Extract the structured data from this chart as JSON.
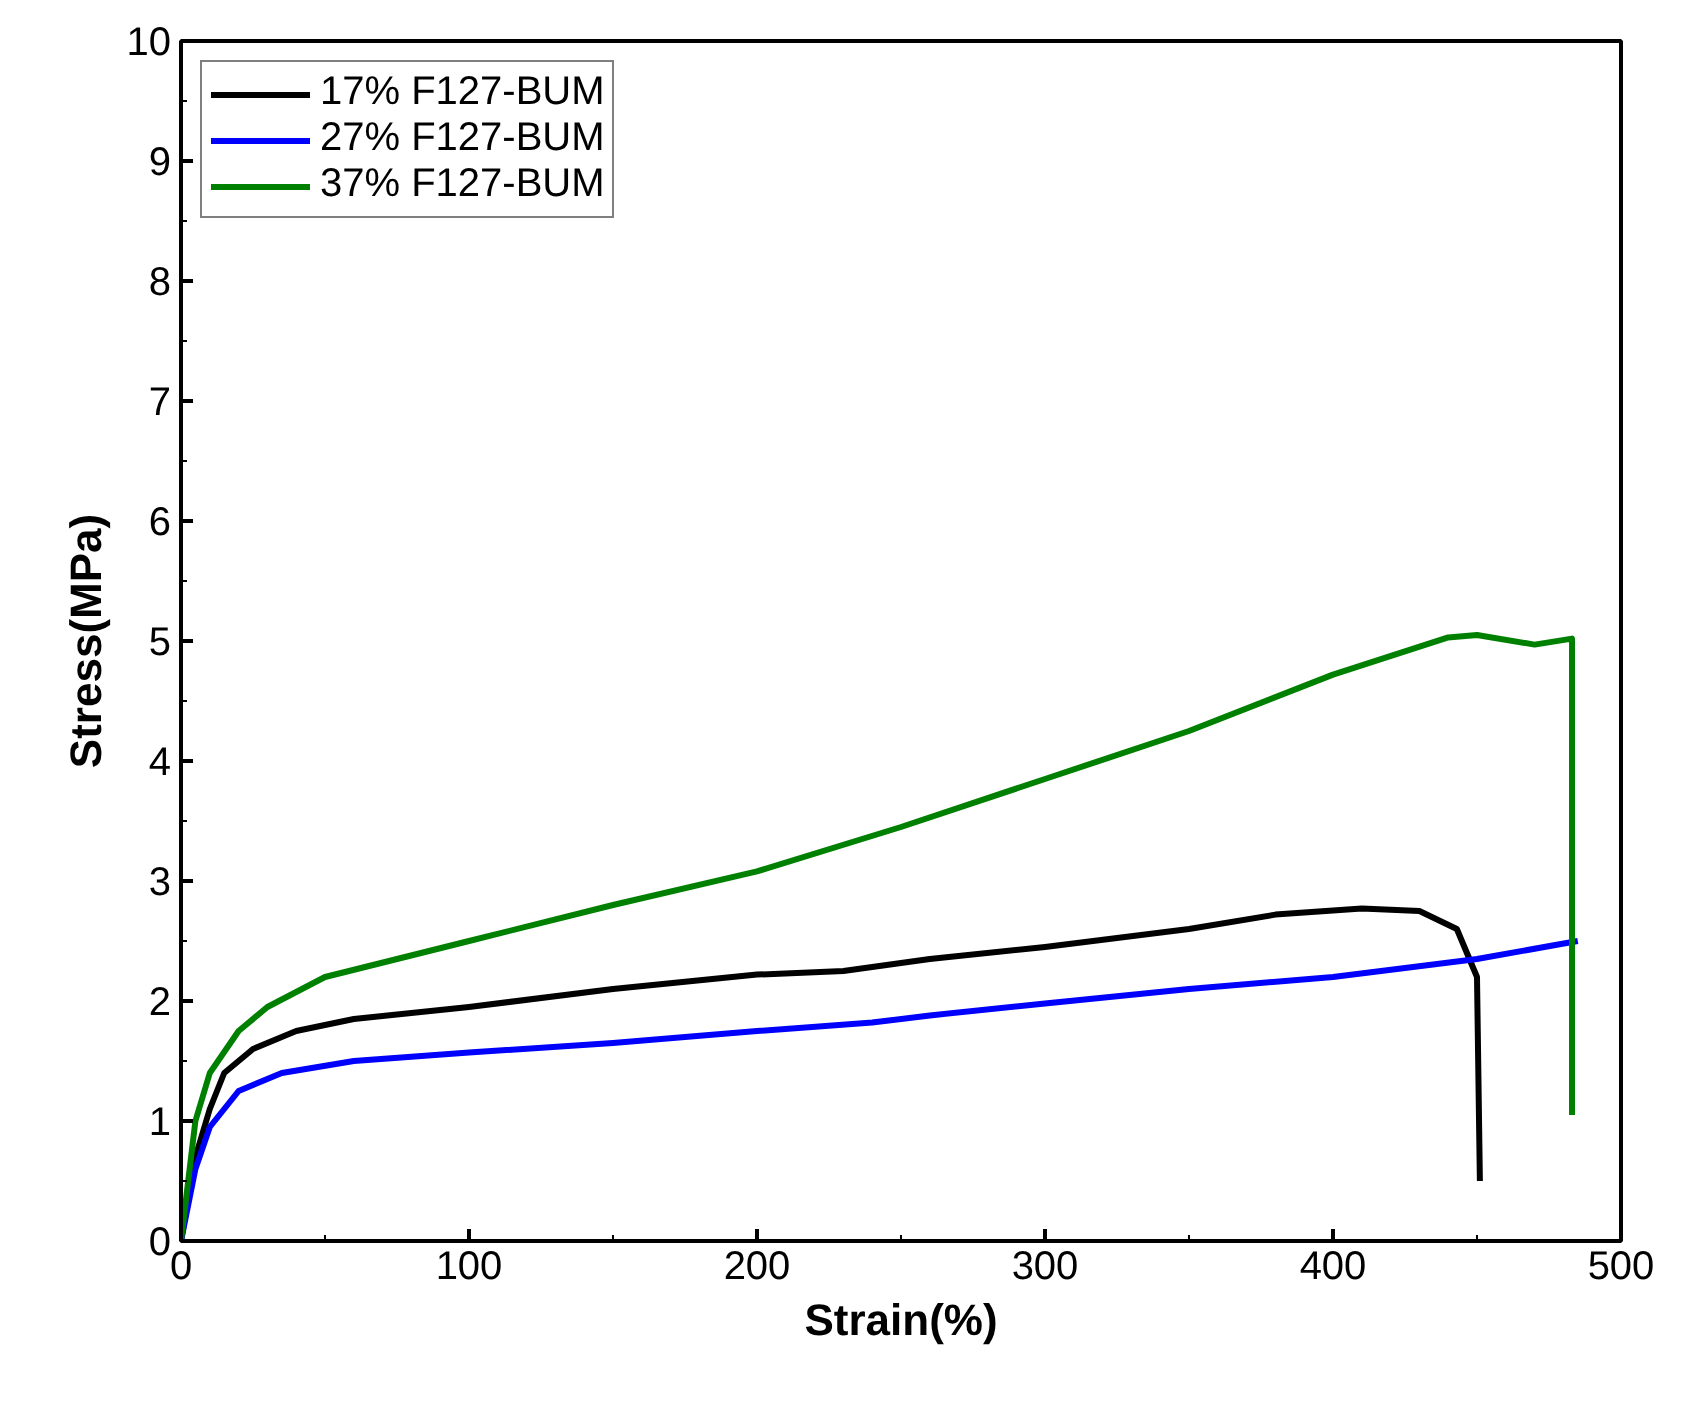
{
  "chart_data": {
    "type": "line",
    "xlabel": "Strain(%)",
    "ylabel": "Stress(MPa)",
    "xlim": [
      0,
      500
    ],
    "ylim": [
      0,
      10
    ],
    "xticks": [
      0,
      100,
      200,
      300,
      400,
      500
    ],
    "yticks": [
      0,
      1,
      2,
      3,
      4,
      5,
      6,
      7,
      8,
      9,
      10
    ],
    "grid": false,
    "legend": "top left",
    "marker": "none",
    "line_style": "solid",
    "series": [
      {
        "name": "17% F127-BUM",
        "color": "#000000",
        "x": [
          0,
          5,
          10,
          15,
          25,
          40,
          60,
          100,
          150,
          200,
          230,
          260,
          300,
          350,
          380,
          410,
          430,
          443,
          450,
          451
        ],
        "values": [
          0,
          0.7,
          1.1,
          1.4,
          1.6,
          1.75,
          1.85,
          1.95,
          2.1,
          2.22,
          2.25,
          2.35,
          2.45,
          2.6,
          2.72,
          2.77,
          2.75,
          2.6,
          2.2,
          0.5
        ]
      },
      {
        "name": "27% F127-BUM",
        "color": "#0000ff",
        "x": [
          0,
          5,
          10,
          20,
          35,
          60,
          100,
          150,
          200,
          240,
          260,
          300,
          350,
          400,
          450,
          485
        ],
        "values": [
          0,
          0.6,
          0.95,
          1.25,
          1.4,
          1.5,
          1.57,
          1.65,
          1.75,
          1.82,
          1.88,
          1.98,
          2.1,
          2.2,
          2.35,
          2.5
        ]
      },
      {
        "name": "37% F127-BUM",
        "color": "#008000",
        "x": [
          0,
          5,
          10,
          20,
          30,
          50,
          100,
          150,
          200,
          250,
          300,
          350,
          400,
          440,
          450,
          470,
          483,
          483
        ],
        "values": [
          0,
          1.0,
          1.4,
          1.75,
          1.95,
          2.2,
          2.5,
          2.8,
          3.08,
          3.45,
          3.85,
          4.25,
          4.72,
          5.03,
          5.05,
          4.97,
          5.02,
          1.05
        ]
      }
    ]
  }
}
